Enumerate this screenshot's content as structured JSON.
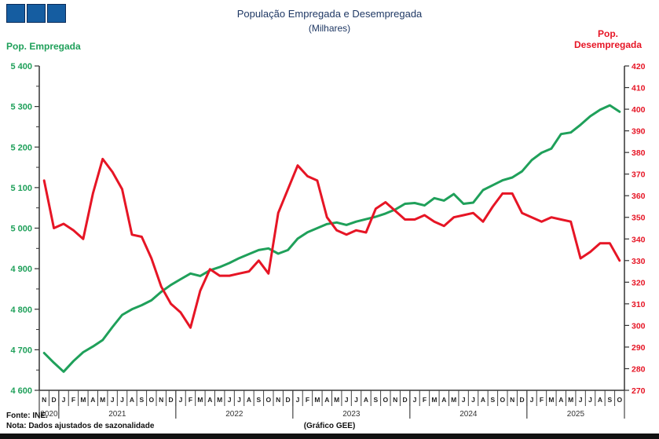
{
  "header": {
    "title": "População Empregada e Desempregada",
    "subtitle": "(Milhares)"
  },
  "logo": {
    "name": "three-blue-squares-logo",
    "square_count": 3,
    "square_color": "#155DA1"
  },
  "left_axis": {
    "title": "Pop. Empregada",
    "color": "#1FA05A",
    "min": 4600,
    "max": 5400,
    "tick_step": 100,
    "minor_step": 50,
    "tick_labels": [
      "5 400",
      "5 300",
      "5 200",
      "5 100",
      "5 000",
      "4 900",
      "4 800",
      "4 700",
      "4 600"
    ]
  },
  "right_axis": {
    "title_line1": "Pop.",
    "title_line2": "Desempregada",
    "color": "#E61525",
    "min": 270,
    "max": 420,
    "tick_step": 10,
    "tick_labels": [
      "420",
      "410",
      "400",
      "390",
      "380",
      "370",
      "360",
      "350",
      "340",
      "330",
      "320",
      "310",
      "300",
      "290",
      "280",
      "270"
    ]
  },
  "footer": {
    "source": "Fonte: INE.",
    "note": "Nota: Dados ajustados de sazonalidade",
    "credit": "(Gráfico GEE)"
  },
  "chart_data": {
    "type": "line",
    "title": "População Empregada e Desempregada (Milhares)",
    "x_month_letters": [
      "N",
      "D",
      "J",
      "F",
      "M",
      "A",
      "M",
      "J",
      "J",
      "A",
      "S",
      "O",
      "N",
      "D",
      "J",
      "F",
      "M",
      "A",
      "M",
      "J",
      "J",
      "A",
      "S",
      "O",
      "N",
      "D",
      "J",
      "F",
      "M",
      "A",
      "M",
      "J",
      "J",
      "A",
      "S",
      "O",
      "N",
      "D",
      "J",
      "F",
      "M",
      "A",
      "M",
      "J",
      "J",
      "A",
      "S",
      "O",
      "N",
      "D",
      "J",
      "F",
      "M",
      "A",
      "M",
      "J",
      "J",
      "A",
      "S",
      "O"
    ],
    "year_groups": [
      {
        "label": "2020",
        "months": 2
      },
      {
        "label": "2021",
        "months": 12
      },
      {
        "label": "2022",
        "months": 12
      },
      {
        "label": "2023",
        "months": 12
      },
      {
        "label": "2024",
        "months": 12
      },
      {
        "label": "2025",
        "months": 10
      }
    ],
    "left_ylim": [
      4600,
      5400
    ],
    "right_ylim": [
      270,
      420
    ],
    "grid": false,
    "series": [
      {
        "name": "Pop. Empregada",
        "axis": "left",
        "color": "#1FA05A",
        "values": [
          4692,
          4668,
          4646,
          4672,
          4694,
          4708,
          4724,
          4756,
          4786,
          4800,
          4810,
          4822,
          4843,
          4860,
          4874,
          4888,
          4882,
          4896,
          4904,
          4914,
          4926,
          4936,
          4946,
          4950,
          4937,
          4946,
          4974,
          4990,
          5000,
          5010,
          5014,
          5008,
          5016,
          5022,
          5028,
          5036,
          5046,
          5060,
          5062,
          5056,
          5074,
          5068,
          5084,
          5060,
          5063,
          5094,
          5106,
          5118,
          5125,
          5140,
          5168,
          5186,
          5196,
          5232,
          5236,
          5255,
          5276,
          5292,
          5303,
          5287
        ]
      },
      {
        "name": "Pop. Desempregada",
        "axis": "right",
        "color": "#E61525",
        "values": [
          367,
          345,
          347,
          344,
          340,
          361,
          377,
          371,
          363,
          342,
          341,
          331,
          318,
          310,
          306,
          299,
          316,
          326,
          323,
          323,
          324,
          325,
          330,
          324,
          352,
          363,
          374,
          369,
          367,
          350,
          344,
          342,
          344,
          343,
          354,
          357,
          353,
          349,
          349,
          351,
          348,
          346,
          350,
          351,
          352,
          348,
          355,
          361,
          361,
          352,
          350,
          348,
          350,
          349,
          348,
          331,
          334,
          338,
          338,
          330
        ]
      }
    ]
  }
}
